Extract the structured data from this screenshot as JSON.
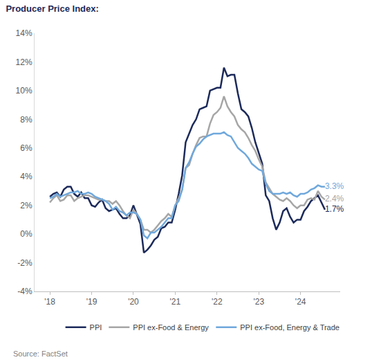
{
  "chart_data": {
    "type": "line",
    "title": "Producer Price Index:",
    "annotations": [
      "Source: FactSet"
    ],
    "categories": [
      "'18",
      null,
      null,
      null,
      null,
      null,
      null,
      null,
      null,
      null,
      null,
      null,
      "'19",
      null,
      null,
      null,
      null,
      null,
      null,
      null,
      null,
      null,
      null,
      null,
      "'20",
      null,
      null,
      null,
      null,
      null,
      null,
      null,
      null,
      null,
      null,
      null,
      "'21",
      null,
      null,
      null,
      null,
      null,
      null,
      null,
      null,
      null,
      null,
      null,
      "'22",
      null,
      null,
      null,
      null,
      null,
      null,
      null,
      null,
      null,
      null,
      null,
      "'23",
      null,
      null,
      null,
      null,
      null,
      null,
      null,
      null,
      null,
      null,
      null,
      "'24",
      null,
      null,
      null,
      null,
      null,
      null,
      null
    ],
    "series": [
      {
        "name": "PPI",
        "color": "#1c2a5a",
        "values": [
          2.6,
          2.8,
          2.9,
          2.6,
          3.1,
          3.3,
          3.3,
          2.8,
          2.6,
          2.9,
          2.5,
          2.5,
          2.0,
          1.9,
          2.2,
          2.4,
          1.8,
          1.6,
          1.7,
          1.8,
          1.4,
          1.1,
          1.1,
          1.3,
          2.0,
          1.3,
          0.7,
          -1.3,
          -1.1,
          -0.8,
          -0.4,
          -0.2,
          0.4,
          0.5,
          0.8,
          0.8,
          1.7,
          2.8,
          4.1,
          6.4,
          7.0,
          7.6,
          8.0,
          8.7,
          8.8,
          8.9,
          10.0,
          10.1,
          10.2,
          10.2,
          11.6,
          11.0,
          11.1,
          11.1,
          9.8,
          8.7,
          8.5,
          8.2,
          7.4,
          6.4,
          5.7,
          4.9,
          2.7,
          2.3,
          1.1,
          0.3,
          0.8,
          1.6,
          1.8,
          1.2,
          0.8,
          1.0,
          1.0,
          1.6,
          1.9,
          2.3,
          2.5,
          2.7,
          2.2,
          1.7
        ],
        "value_labels": [
          null,
          null,
          null,
          null,
          null,
          null,
          null,
          null,
          null,
          null,
          null,
          null,
          null,
          null,
          null,
          null,
          null,
          null,
          null,
          null,
          null,
          null,
          null,
          null,
          null,
          null,
          null,
          null,
          null,
          null,
          null,
          null,
          null,
          null,
          null,
          null,
          null,
          null,
          null,
          null,
          null,
          null,
          null,
          null,
          null,
          null,
          null,
          null,
          null,
          null,
          null,
          null,
          null,
          null,
          null,
          null,
          null,
          null,
          null,
          null,
          null,
          null,
          null,
          null,
          null,
          null,
          null,
          null,
          null,
          null,
          null,
          null,
          null,
          null,
          null,
          null,
          null,
          null,
          null,
          "1.7%"
        ]
      },
      {
        "name": "PPI ex-Food & Energy",
        "color": "#a6a6a6",
        "values": [
          2.2,
          2.5,
          2.7,
          2.3,
          2.4,
          2.7,
          2.7,
          2.3,
          2.5,
          2.6,
          2.7,
          2.7,
          2.6,
          2.5,
          2.4,
          2.4,
          2.3,
          2.3,
          2.1,
          2.3,
          2.0,
          1.6,
          1.3,
          1.1,
          1.7,
          1.4,
          1.0,
          0.3,
          0.3,
          0.1,
          0.3,
          0.6,
          0.9,
          1.1,
          1.4,
          1.2,
          2.0,
          2.5,
          3.1,
          4.6,
          4.8,
          5.6,
          6.2,
          6.7,
          6.8,
          6.8,
          7.7,
          8.3,
          8.5,
          8.8,
          9.6,
          8.9,
          8.5,
          8.2,
          7.6,
          7.3,
          7.1,
          6.7,
          6.2,
          5.8,
          5.2,
          4.7,
          3.6,
          3.2,
          2.8,
          2.6,
          2.4,
          2.3,
          2.5,
          2.3,
          2.0,
          1.8,
          2.0,
          2.0,
          2.4,
          2.5,
          2.4,
          3.0,
          2.6,
          2.4
        ],
        "value_labels": [
          null,
          null,
          null,
          null,
          null,
          null,
          null,
          null,
          null,
          null,
          null,
          null,
          null,
          null,
          null,
          null,
          null,
          null,
          null,
          null,
          null,
          null,
          null,
          null,
          null,
          null,
          null,
          null,
          null,
          null,
          null,
          null,
          null,
          null,
          null,
          null,
          null,
          null,
          null,
          null,
          null,
          null,
          null,
          null,
          null,
          null,
          null,
          null,
          null,
          null,
          null,
          null,
          null,
          null,
          null,
          null,
          null,
          null,
          null,
          null,
          null,
          null,
          null,
          null,
          null,
          null,
          null,
          null,
          null,
          null,
          null,
          null,
          null,
          null,
          null,
          null,
          null,
          null,
          null,
          "2.4%"
        ]
      },
      {
        "name": "PPI ex-Food, Energy & Trade",
        "color": "#6fa8dc",
        "values": [
          2.5,
          2.6,
          2.8,
          2.6,
          2.7,
          2.8,
          2.9,
          2.9,
          3.0,
          2.8,
          2.8,
          2.9,
          2.8,
          2.6,
          2.5,
          2.4,
          2.3,
          2.1,
          1.7,
          1.9,
          1.6,
          1.5,
          1.3,
          1.5,
          1.5,
          1.4,
          1.0,
          -0.1,
          -0.3,
          0.1,
          0.1,
          0.3,
          0.5,
          0.8,
          1.1,
          1.1,
          2.0,
          2.3,
          3.1,
          4.6,
          5.0,
          5.6,
          6.1,
          6.3,
          6.6,
          6.8,
          6.9,
          7.0,
          7.0,
          7.0,
          7.1,
          6.9,
          6.8,
          6.4,
          6.0,
          5.8,
          5.6,
          5.3,
          4.9,
          4.7,
          4.5,
          4.4,
          3.5,
          3.0,
          2.8,
          2.8,
          2.8,
          2.9,
          2.8,
          2.9,
          2.7,
          2.6,
          2.8,
          2.8,
          2.9,
          3.1,
          3.2,
          3.4,
          3.3,
          3.3
        ],
        "value_labels": [
          null,
          null,
          null,
          null,
          null,
          null,
          null,
          null,
          null,
          null,
          null,
          null,
          null,
          null,
          null,
          null,
          null,
          null,
          null,
          null,
          null,
          null,
          null,
          null,
          null,
          null,
          null,
          null,
          null,
          null,
          null,
          null,
          null,
          null,
          null,
          null,
          null,
          null,
          null,
          null,
          null,
          null,
          null,
          null,
          null,
          null,
          null,
          null,
          null,
          null,
          null,
          null,
          null,
          null,
          null,
          null,
          null,
          null,
          null,
          null,
          null,
          null,
          null,
          null,
          null,
          null,
          null,
          null,
          null,
          null,
          null,
          null,
          null,
          null,
          null,
          null,
          null,
          null,
          null,
          "3.3%"
        ]
      }
    ],
    "ylim": [
      -4,
      14
    ],
    "yticks": [
      {
        "value": -4,
        "label": "-4%"
      },
      {
        "value": -2,
        "label": "-2%"
      },
      {
        "value": 0,
        "label": "0%"
      },
      {
        "value": 2,
        "label": "2%"
      },
      {
        "value": 4,
        "label": "4%"
      },
      {
        "value": 6,
        "label": "6%"
      },
      {
        "value": 8,
        "label": "8%"
      },
      {
        "value": 10,
        "label": "10%"
      },
      {
        "value": 12,
        "label": "12%"
      },
      {
        "value": 14,
        "label": "14%"
      }
    ],
    "grid": false,
    "legend": "bottom",
    "data_labels": true
  }
}
